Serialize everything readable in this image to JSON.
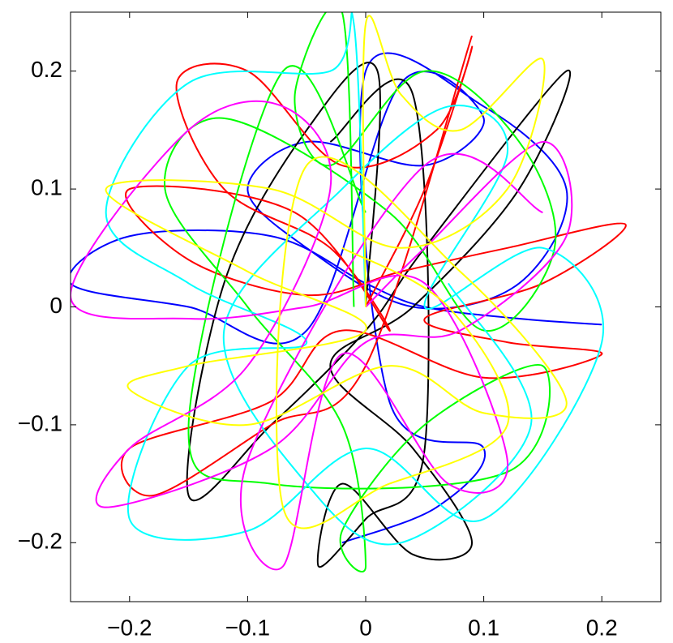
{
  "chart_data": {
    "type": "line",
    "xlim": [
      -0.25,
      0.25
    ],
    "ylim": [
      -0.25,
      0.25
    ],
    "xticks": [
      {
        "value": -0.2,
        "label": "−0.2"
      },
      {
        "value": -0.1,
        "label": "−0.1"
      },
      0,
      0.1,
      0.2
    ],
    "yticks": [
      {
        "value": -0.2,
        "label": "−0.2"
      },
      {
        "value": -0.1,
        "label": "−0.1"
      },
      0,
      0.1,
      0.2
    ],
    "series": [
      {
        "color": "#0000ff",
        "x": [
          0.2,
          0.13,
          0.05,
          0.0,
          -0.08,
          -0.2,
          -0.25,
          -0.15,
          -0.05,
          0.03,
          0.1,
          0.05,
          -0.05,
          -0.1,
          -0.05,
          0.04,
          0.13,
          0.17,
          0.1,
          0.0,
          0.02,
          0.1,
          0.06,
          -0.02
        ],
        "y": [
          -0.015,
          -0.01,
          0.0,
          0.02,
          0.06,
          0.06,
          0.02,
          0.0,
          -0.02,
          0.19,
          0.16,
          0.12,
          0.14,
          0.1,
          0.05,
          0.0,
          0.02,
          0.1,
          0.17,
          0.2,
          -0.08,
          -0.12,
          -0.17,
          -0.2
        ]
      },
      {
        "color": "#000000",
        "x": [
          0.0,
          0.01,
          -0.05,
          -0.12,
          -0.15,
          -0.08,
          0.0,
          0.05,
          0.17,
          0.13,
          0.04,
          -0.03,
          0.04,
          0.09,
          0.04,
          -0.02,
          -0.04,
          0.0,
          0.05,
          0.04,
          -0.03
        ],
        "y": [
          0.0,
          0.2,
          0.15,
          0.02,
          -0.16,
          -0.1,
          -0.02,
          0.05,
          0.2,
          0.1,
          0.0,
          -0.05,
          -0.12,
          -0.2,
          -0.21,
          -0.15,
          -0.22,
          -0.18,
          -0.12,
          0.18,
          0.14
        ]
      },
      {
        "color": "#ff0000",
        "x": [
          0.0,
          0.05,
          0.09,
          0.06,
          -0.02,
          -0.1,
          -0.16,
          -0.12,
          -0.03,
          0.02,
          -0.06,
          -0.2,
          -0.15,
          -0.05,
          0.03,
          0.12,
          0.22,
          0.15,
          0.05,
          0.12,
          0.2,
          0.1,
          -0.02,
          -0.08,
          -0.2,
          -0.18,
          -0.08,
          0.0,
          0.09
        ],
        "y": [
          0.0,
          0.1,
          0.22,
          0.15,
          0.12,
          0.2,
          0.19,
          0.1,
          0.05,
          -0.02,
          0.08,
          0.1,
          0.04,
          0.01,
          0.03,
          0.05,
          0.07,
          0.02,
          -0.01,
          -0.03,
          -0.04,
          -0.06,
          -0.02,
          -0.08,
          -0.12,
          -0.16,
          -0.1,
          -0.05,
          0.23
        ]
      },
      {
        "color": "#00ff00",
        "x": [
          -0.01,
          -0.02,
          -0.06,
          -0.03,
          0.05,
          0.13,
          0.16,
          0.1,
          0.02,
          -0.12,
          -0.17,
          -0.1,
          -0.02,
          0.0,
          -0.02,
          0.05,
          0.15,
          0.12,
          -0.08,
          -0.15,
          -0.07,
          0.0
        ],
        "y": [
          0.0,
          0.25,
          0.18,
          0.12,
          0.2,
          0.14,
          0.05,
          -0.02,
          0.08,
          0.16,
          0.1,
          0.0,
          -0.1,
          -0.22,
          -0.19,
          -0.1,
          -0.05,
          -0.14,
          -0.15,
          -0.1,
          0.2,
          0.08
        ]
      },
      {
        "color": "#00ffff",
        "x": [
          0.0,
          -0.01,
          -0.03,
          -0.15,
          -0.22,
          -0.15,
          -0.05,
          -0.15,
          -0.2,
          -0.1,
          0.0,
          0.1,
          0.2,
          0.15,
          0.05,
          0.12,
          0.07,
          -0.02,
          -0.12,
          -0.05,
          0.03,
          0.14,
          0.07
        ],
        "y": [
          0.0,
          0.24,
          0.2,
          0.19,
          0.08,
          0.02,
          -0.03,
          -0.05,
          -0.18,
          -0.19,
          -0.12,
          -0.18,
          -0.03,
          0.05,
          0.0,
          0.13,
          0.17,
          0.1,
          -0.02,
          -0.15,
          -0.2,
          -0.1,
          0.02
        ]
      },
      {
        "color": "#ff00ff",
        "x": [
          0.0,
          0.05,
          0.15,
          0.17,
          0.08,
          0.0,
          -0.08,
          -0.22,
          -0.2,
          -0.1,
          -0.03,
          -0.07,
          -0.15,
          -0.25,
          -0.15,
          -0.05,
          0.05,
          0.12,
          0.07,
          -0.02,
          -0.07,
          -0.1,
          0.05,
          0.15
        ],
        "y": [
          0.0,
          0.05,
          0.14,
          0.06,
          -0.02,
          -0.03,
          -0.12,
          -0.17,
          -0.12,
          -0.05,
          0.1,
          0.17,
          0.15,
          0.01,
          -0.01,
          0.0,
          0.02,
          -0.13,
          -0.15,
          -0.04,
          -0.22,
          -0.13,
          0.12,
          0.08
        ]
      },
      {
        "color": "#ffff00",
        "x": [
          0.0,
          0.0,
          0.03,
          0.08,
          0.15,
          0.12,
          0.03,
          -0.08,
          -0.22,
          -0.1,
          0.0,
          -0.15,
          -0.2,
          -0.1,
          0.02,
          0.1,
          0.17,
          0.08,
          -0.05,
          -0.07,
          0.02,
          0.12,
          0.07,
          -0.02
        ],
        "y": [
          0.0,
          0.24,
          0.18,
          0.15,
          0.21,
          0.1,
          0.05,
          0.1,
          0.1,
          0.03,
          -0.02,
          -0.05,
          -0.07,
          -0.1,
          -0.05,
          -0.09,
          -0.08,
          0.03,
          0.12,
          -0.17,
          -0.15,
          -0.1,
          0.0,
          0.05
        ]
      }
    ]
  }
}
